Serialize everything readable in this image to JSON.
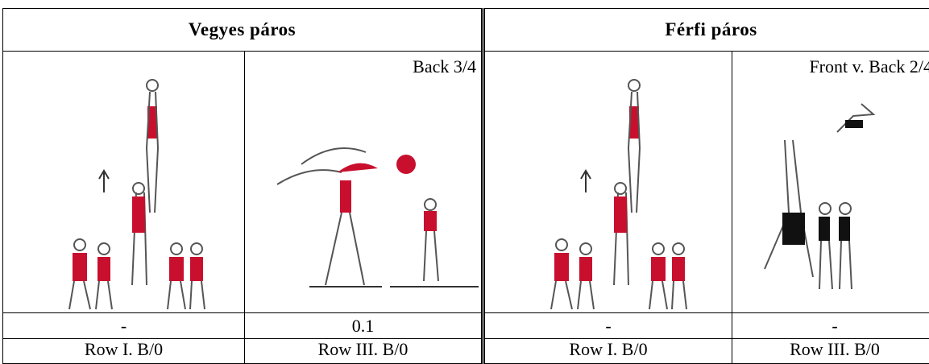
{
  "table": {
    "header": [
      "Vegyes páros",
      "Férfi páros"
    ],
    "captions": [
      "Back 3/4",
      "Front v. Back 2/4"
    ],
    "rows": [
      [
        "-",
        "0.1",
        "-",
        "-"
      ],
      [
        "Row I. B/0",
        "Row III. B/0",
        "Row I. B/0",
        "Row III. B/0"
      ]
    ]
  }
}
